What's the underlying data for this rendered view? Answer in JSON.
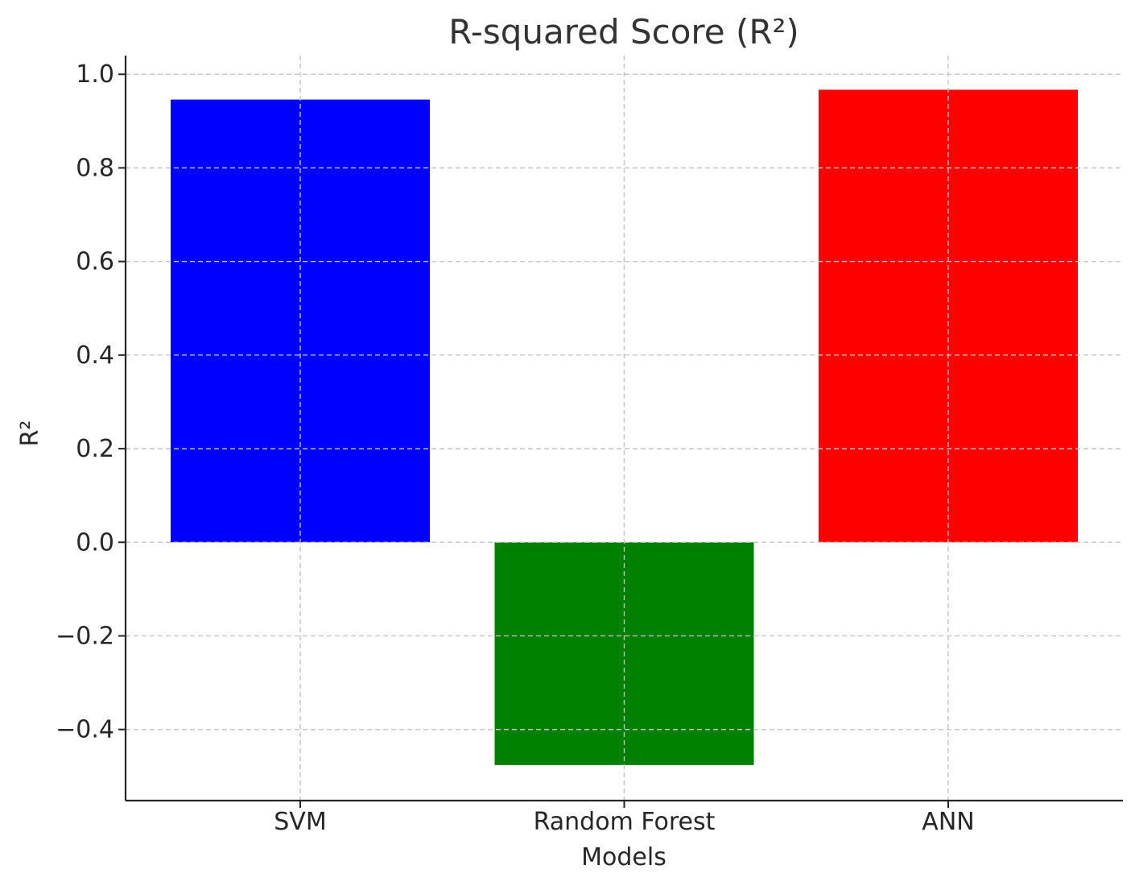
{
  "chart_data": {
    "type": "bar",
    "title": "R-squared Score (R²)",
    "xlabel": "Models",
    "ylabel": "R²",
    "categories": [
      "SVM",
      "Random Forest",
      "ANN"
    ],
    "values": [
      0.946,
      -0.476,
      0.967
    ],
    "colors": [
      "#0000ff",
      "#008000",
      "#ff0000"
    ],
    "ylim": [
      -0.552,
      1.04
    ],
    "yticks": [
      1.0,
      0.8,
      0.6,
      0.4,
      0.2,
      0.0,
      -0.2,
      -0.4
    ],
    "ytick_labels": [
      "1.0",
      "0.8",
      "0.6",
      "0.4",
      "0.2",
      "0.0",
      "−0.2",
      "−0.4"
    ],
    "grid": true
  }
}
